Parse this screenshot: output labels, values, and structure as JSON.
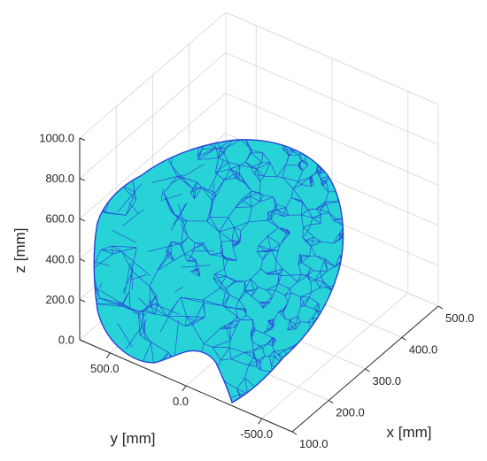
{
  "chart_data": {
    "type": "surface-mesh-3d",
    "title": "",
    "xlabel": "x [mm]",
    "ylabel": "y [mm]",
    "zlabel": "z [mm]",
    "x_ticks": [
      "100.0",
      "200.0",
      "300.0",
      "400.0",
      "500.0"
    ],
    "y_ticks": [
      "500.0",
      "0.0",
      "-500.0"
    ],
    "z_ticks": [
      "0.0",
      "200.0",
      "400.0",
      "600.0",
      "800.0",
      "1000.0"
    ],
    "x_range": [
      100,
      500
    ],
    "y_range": [
      -700,
      700
    ],
    "z_range": [
      0,
      1000
    ],
    "grid": true,
    "face_color": "#27d3d6",
    "edge_color": "#2a3fd8",
    "grid_color": "#dcdcdc",
    "axis_color": "#262626",
    "description": ""
  }
}
